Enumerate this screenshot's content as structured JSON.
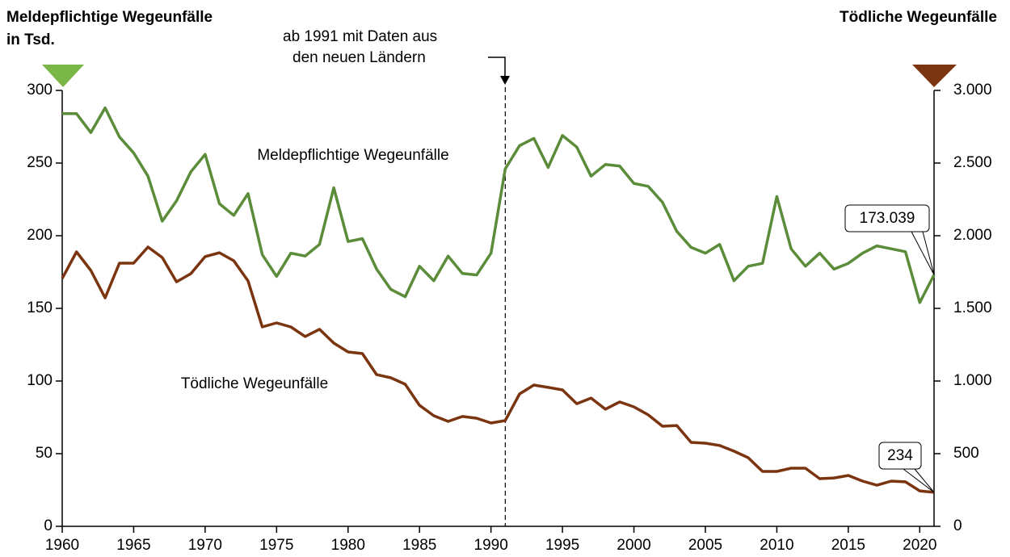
{
  "chart_data": {
    "type": "line",
    "y_title": [
      "Meldepflichtige Wegeunfälle",
      "in Tsd."
    ],
    "y2_title": "Tödliche Wegeunfälle",
    "annotation": {
      "text": [
        "ab 1991 mit Daten aus",
        "den neuen Ländern"
      ],
      "x": 1991
    },
    "x": [
      1960,
      1961,
      1962,
      1963,
      1964,
      1965,
      1966,
      1967,
      1968,
      1969,
      1970,
      1971,
      1972,
      1973,
      1974,
      1975,
      1976,
      1977,
      1978,
      1979,
      1980,
      1981,
      1982,
      1983,
      1984,
      1985,
      1986,
      1987,
      1988,
      1989,
      1990,
      1991,
      1992,
      1993,
      1994,
      1995,
      1996,
      1997,
      1998,
      1999,
      2000,
      2001,
      2002,
      2003,
      2004,
      2005,
      2006,
      2007,
      2008,
      2009,
      2010,
      2011,
      2012,
      2013,
      2014,
      2015,
      2016,
      2017,
      2018,
      2019,
      2020,
      2021
    ],
    "xlim": [
      1960,
      2021
    ],
    "xticks": [
      1960,
      1965,
      1970,
      1975,
      1980,
      1985,
      1990,
      1995,
      2000,
      2005,
      2010,
      2015,
      2020
    ],
    "ylim": [
      0,
      300
    ],
    "yticks": [
      0,
      50,
      100,
      150,
      200,
      250,
      300
    ],
    "y2lim": [
      0,
      3000
    ],
    "y2ticks": [
      0,
      500,
      {
        "value": 1000,
        "label": "1.000"
      },
      {
        "value": 1500,
        "label": "1.500"
      },
      {
        "value": 2000,
        "label": "2.000"
      },
      {
        "value": 2500,
        "label": "2.500"
      },
      {
        "value": 3000,
        "label": "3.000"
      }
    ],
    "series": [
      {
        "name": "Meldepflichtige Wegeunfälle",
        "color": "#5b8c3a",
        "marker_color": "#7ab648",
        "axis": "y",
        "values": [
          284,
          284,
          271,
          288,
          268,
          257,
          241,
          210,
          224,
          244,
          256,
          222,
          214,
          229,
          187,
          172,
          188,
          186,
          194,
          233,
          196,
          198,
          177,
          163,
          158,
          179,
          169,
          186,
          174,
          173,
          188,
          246,
          262,
          267,
          247,
          269,
          261,
          241,
          249,
          248,
          236,
          234,
          223,
          203,
          192,
          188,
          194,
          169,
          179,
          181,
          227,
          191,
          179,
          188,
          177,
          181,
          188,
          193,
          191,
          189,
          154,
          173.039
        ]
      },
      {
        "name": "Tödliche Wegeunfälle",
        "color": "#7a3510",
        "marker_color": "#7a3510",
        "axis": "y2",
        "values": [
          1706,
          1889,
          1761,
          1572,
          1811,
          1811,
          1922,
          1850,
          1683,
          1739,
          1856,
          1883,
          1828,
          1689,
          1372,
          1400,
          1372,
          1306,
          1356,
          1261,
          1200,
          1189,
          1044,
          1022,
          978,
          833,
          761,
          722,
          756,
          744,
          711,
          728,
          911,
          972,
          956,
          939,
          844,
          883,
          806,
          856,
          822,
          767,
          689,
          694,
          578,
          572,
          556,
          517,
          472,
          378,
          378,
          400,
          400,
          328,
          333,
          350,
          311,
          283,
          311,
          306,
          244,
          234
        ]
      }
    ]
  }
}
